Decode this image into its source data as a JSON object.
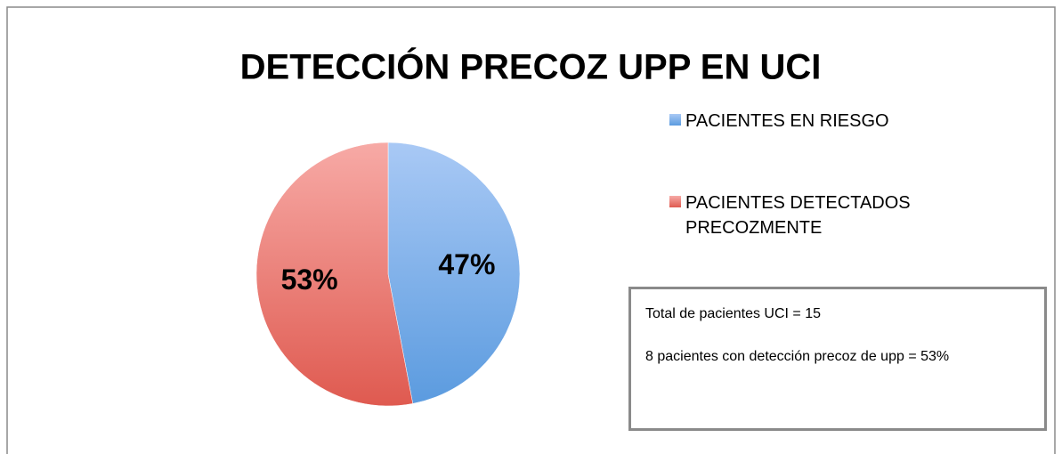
{
  "chart_data": {
    "type": "pie",
    "title": "DETECCIÓN PRECOZ UPP EN UCI",
    "series": [
      {
        "name": "PACIENTES EN RIESGO",
        "color": "#5b9bdf",
        "values": [
          47
        ],
        "value_labels": [
          "47%"
        ]
      },
      {
        "name": "PACIENTES DETECTADOS PRECOZMENTE",
        "color": "#df5a50",
        "values": [
          53
        ],
        "value_labels": [
          "53%"
        ]
      }
    ],
    "legend": "right",
    "annotations": [
      "Total de pacientes UCI = 15",
      "8 pacientes con detección precoz de upp = 53%"
    ]
  }
}
